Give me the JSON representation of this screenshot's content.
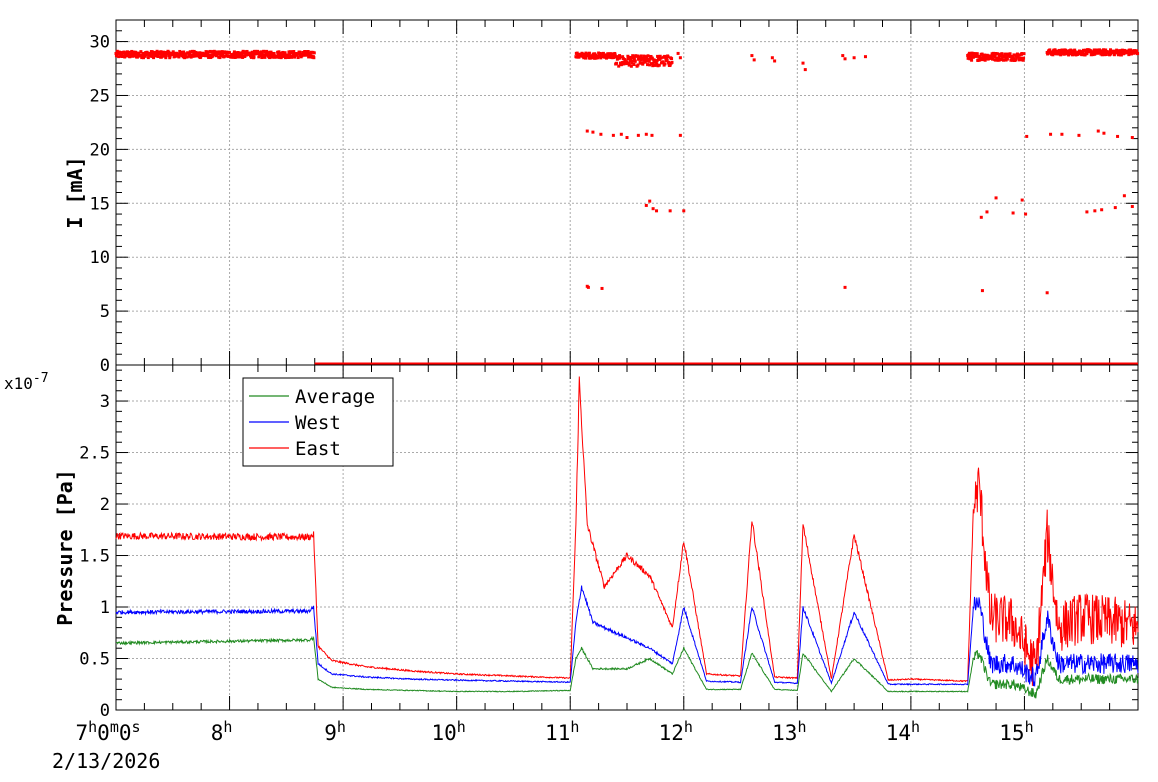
{
  "chart_data": [
    {
      "type": "scatter",
      "ylabel": "I [mA]",
      "ylim": [
        0,
        32
      ],
      "yticks": [
        "0",
        "5",
        "10",
        "15",
        "20",
        "25",
        "30"
      ],
      "grid": true,
      "series": [
        {
          "color": "#ff0000",
          "segments": [
            {
              "x": [
                7.0,
                8.75
              ],
              "y": 28.8,
              "spread": 0.6
            },
            {
              "x": [
                11.05,
                11.4
              ],
              "y": 28.7,
              "spread": 0.5
            },
            {
              "x": [
                11.4,
                11.9
              ],
              "y": 28.2,
              "spread": 1.0
            },
            {
              "x": [
                14.5,
                15.0
              ],
              "y": 28.6,
              "spread": 0.7
            },
            {
              "x": [
                15.2,
                16.0
              ],
              "y": 29.0,
              "spread": 0.5
            }
          ],
          "points": [
            [
              11.95,
              28.9
            ],
            [
              11.97,
              28.5
            ],
            [
              12.6,
              28.7
            ],
            [
              12.62,
              28.3
            ],
            [
              12.78,
              28.5
            ],
            [
              12.8,
              28.2
            ],
            [
              13.05,
              28.0
            ],
            [
              13.07,
              27.4
            ],
            [
              13.4,
              28.7
            ],
            [
              13.42,
              28.4
            ],
            [
              13.5,
              28.5
            ],
            [
              13.6,
              28.6
            ],
            [
              11.15,
              21.7
            ],
            [
              11.2,
              21.6
            ],
            [
              11.27,
              21.4
            ],
            [
              11.38,
              21.3
            ],
            [
              11.45,
              21.4
            ],
            [
              11.5,
              21.1
            ],
            [
              11.6,
              21.3
            ],
            [
              11.67,
              21.4
            ],
            [
              11.72,
              21.3
            ],
            [
              11.97,
              21.3
            ],
            [
              15.02,
              21.2
            ],
            [
              15.23,
              21.4
            ],
            [
              15.33,
              21.4
            ],
            [
              15.48,
              21.3
            ],
            [
              15.65,
              21.7
            ],
            [
              15.7,
              21.5
            ],
            [
              15.82,
              21.2
            ],
            [
              15.95,
              21.1
            ],
            [
              11.67,
              14.8
            ],
            [
              11.7,
              15.2
            ],
            [
              11.73,
              14.5
            ],
            [
              11.76,
              14.3
            ],
            [
              11.88,
              14.3
            ],
            [
              12.0,
              14.3
            ],
            [
              14.62,
              13.7
            ],
            [
              14.67,
              14.2
            ],
            [
              14.75,
              15.5
            ],
            [
              14.9,
              14.1
            ],
            [
              14.98,
              15.3
            ],
            [
              15.01,
              14.0
            ],
            [
              15.55,
              14.2
            ],
            [
              15.62,
              14.3
            ],
            [
              15.68,
              14.4
            ],
            [
              15.8,
              14.6
            ],
            [
              15.88,
              15.7
            ],
            [
              15.95,
              14.7
            ],
            [
              11.15,
              7.3
            ],
            [
              11.16,
              7.2
            ],
            [
              11.28,
              7.1
            ],
            [
              13.42,
              7.2
            ],
            [
              14.63,
              6.9
            ],
            [
              15.2,
              6.7
            ]
          ],
          "baseline": {
            "x": [
              8.75,
              16.0
            ],
            "y": 0
          }
        }
      ]
    },
    {
      "type": "line",
      "ylabel": "Pressure [Pa]",
      "yscale_label": "x10",
      "yscale_exp": "-7",
      "ylim": [
        0,
        3.35
      ],
      "yticks": [
        "0",
        "0.5",
        "1",
        "1.5",
        "2",
        "2.5",
        "3"
      ],
      "xlim": [
        7.0,
        16.0
      ],
      "xticks": [
        {
          "value": 7,
          "base": "7",
          "sup": "h",
          "rest": "0",
          "sup2": "m",
          "rest2": "0",
          "sup3": "s"
        },
        {
          "value": 8,
          "base": "8",
          "sup": "h"
        },
        {
          "value": 9,
          "base": "9",
          "sup": "h"
        },
        {
          "value": 10,
          "base": "10",
          "sup": "h"
        },
        {
          "value": 11,
          "base": "11",
          "sup": "h"
        },
        {
          "value": 12,
          "base": "12",
          "sup": "h"
        },
        {
          "value": 13,
          "base": "13",
          "sup": "h"
        },
        {
          "value": 14,
          "base": "14",
          "sup": "h"
        },
        {
          "value": 15,
          "base": "15",
          "sup": "h"
        }
      ],
      "date_label": "2/13/2026",
      "grid": true,
      "legend": {
        "placement": "top-left",
        "entries": [
          {
            "name": "Average",
            "color": "#228b22"
          },
          {
            "name": "West",
            "color": "#0000ff"
          },
          {
            "name": "East",
            "color": "#ff0000"
          }
        ]
      },
      "series": [
        {
          "name": "East",
          "color": "#ff0000",
          "x": [
            7.0,
            8.7,
            8.74,
            8.78,
            8.9,
            9.2,
            9.6,
            10.0,
            10.5,
            11.0,
            11.05,
            11.08,
            11.15,
            11.3,
            11.5,
            11.7,
            11.9,
            12.0,
            12.2,
            12.5,
            12.6,
            12.8,
            13.0,
            13.05,
            13.3,
            13.5,
            13.8,
            14.0,
            14.5,
            14.55,
            14.6,
            14.7,
            14.9,
            15.1,
            15.2,
            15.3,
            15.5,
            15.8,
            16.0
          ],
          "y": [
            1.69,
            1.68,
            1.7,
            0.62,
            0.48,
            0.42,
            0.38,
            0.35,
            0.33,
            0.31,
            1.8,
            3.2,
            1.8,
            1.2,
            1.5,
            1.3,
            0.8,
            1.65,
            0.35,
            0.33,
            1.85,
            0.32,
            0.31,
            1.8,
            0.3,
            1.7,
            0.29,
            0.3,
            0.28,
            1.95,
            2.2,
            0.9,
            0.85,
            0.4,
            1.7,
            0.8,
            0.9,
            0.85,
            0.8
          ],
          "noisy_from": 14.55,
          "noise_amp": 0.25
        },
        {
          "name": "West",
          "color": "#0000ff",
          "x": [
            7.0,
            8.7,
            8.74,
            8.78,
            8.9,
            9.2,
            9.6,
            10.0,
            10.5,
            11.0,
            11.05,
            11.1,
            11.2,
            11.5,
            11.7,
            11.9,
            12.0,
            12.2,
            12.5,
            12.6,
            12.8,
            13.0,
            13.05,
            13.3,
            13.5,
            13.8,
            14.0,
            14.5,
            14.55,
            14.6,
            14.7,
            14.9,
            15.1,
            15.2,
            15.3,
            15.5,
            15.8,
            16.0
          ],
          "y": [
            0.95,
            0.96,
            1.0,
            0.45,
            0.35,
            0.32,
            0.3,
            0.29,
            0.28,
            0.27,
            0.85,
            1.2,
            0.85,
            0.7,
            0.6,
            0.45,
            1.0,
            0.28,
            0.27,
            1.0,
            0.27,
            0.26,
            1.0,
            0.26,
            0.95,
            0.25,
            0.25,
            0.25,
            1.0,
            1.05,
            0.45,
            0.45,
            0.3,
            0.9,
            0.45,
            0.45,
            0.45,
            0.45
          ],
          "noisy_from": 14.55,
          "noise_amp": 0.1
        },
        {
          "name": "Average",
          "color": "#228b22",
          "x": [
            7.0,
            8.7,
            8.74,
            8.78,
            8.9,
            9.2,
            9.6,
            10.0,
            10.5,
            11.0,
            11.05,
            11.1,
            11.2,
            11.5,
            11.7,
            11.9,
            12.0,
            12.2,
            12.5,
            12.6,
            12.8,
            13.0,
            13.05,
            13.3,
            13.5,
            13.8,
            14.0,
            14.5,
            14.55,
            14.6,
            14.7,
            14.9,
            15.1,
            15.2,
            15.3,
            15.5,
            15.8,
            16.0
          ],
          "y": [
            0.65,
            0.68,
            0.7,
            0.3,
            0.22,
            0.2,
            0.19,
            0.18,
            0.18,
            0.19,
            0.5,
            0.6,
            0.4,
            0.4,
            0.5,
            0.35,
            0.6,
            0.2,
            0.2,
            0.55,
            0.2,
            0.19,
            0.55,
            0.18,
            0.5,
            0.18,
            0.18,
            0.18,
            0.5,
            0.55,
            0.25,
            0.25,
            0.15,
            0.5,
            0.3,
            0.3,
            0.3,
            0.3
          ],
          "noisy_from": 14.55,
          "noise_amp": 0.05
        }
      ]
    }
  ]
}
